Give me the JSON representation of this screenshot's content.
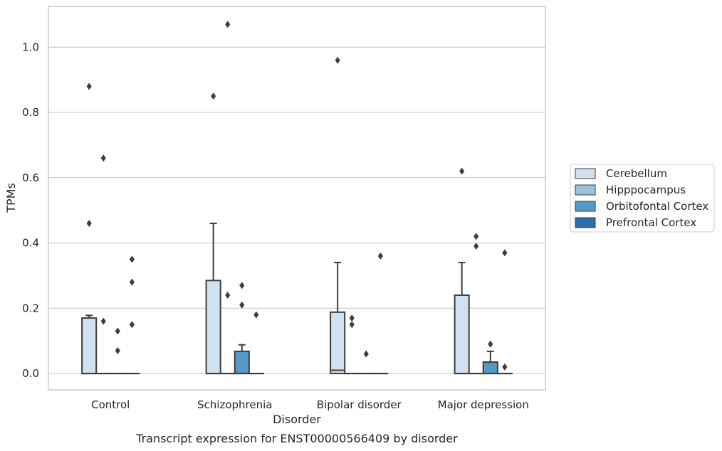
{
  "chart_data": {
    "type": "box",
    "xlabel": "Disorder",
    "ylabel": "TPMs",
    "caption": "Transcript expression for ENST00000566409 by disorder",
    "categories": [
      "Control",
      "Schizophrenia",
      "Bipolar disorder",
      "Major depression"
    ],
    "ylim": [
      -0.05,
      1.125
    ],
    "yticks": [
      "0.0",
      "0.2",
      "0.4",
      "0.6",
      "0.8",
      "1.0"
    ],
    "grid": true,
    "legend_position": "right",
    "series": [
      {
        "name": "Cerebellum",
        "color": "#d1e1ef",
        "boxes": [
          {
            "q1": 0.0,
            "median": 0.0,
            "q3": 0.17,
            "whisker_low": 0.0,
            "whisker_high": 0.178,
            "outliers": [
              0.46,
              0.88
            ]
          },
          {
            "q1": 0.0,
            "median": 0.0,
            "q3": 0.285,
            "whisker_low": 0.0,
            "whisker_high": 0.46,
            "outliers": [
              0.85
            ]
          },
          {
            "q1": 0.0,
            "median": 0.01,
            "q3": 0.188,
            "whisker_low": 0.0,
            "whisker_high": 0.34,
            "outliers": [
              0.96
            ]
          },
          {
            "q1": 0.0,
            "median": 0.0,
            "q3": 0.24,
            "whisker_low": 0.0,
            "whisker_high": 0.34,
            "outliers": [
              0.62
            ]
          }
        ]
      },
      {
        "name": "Hipppocampus",
        "color": "#9ac4de",
        "boxes": [
          {
            "q1": 0.0,
            "median": 0.0,
            "q3": 0.0,
            "whisker_low": 0.0,
            "whisker_high": 0.0,
            "outliers": [
              0.16,
              0.66
            ]
          },
          {
            "q1": 0.0,
            "median": 0.0,
            "q3": 0.0,
            "whisker_low": 0.0,
            "whisker_high": 0.0,
            "outliers": [
              0.24,
              1.07
            ]
          },
          {
            "q1": 0.0,
            "median": 0.0,
            "q3": 0.0,
            "whisker_low": 0.0,
            "whisker_high": 0.0,
            "outliers": [
              0.15,
              0.17
            ]
          },
          {
            "q1": 0.0,
            "median": 0.0,
            "q3": 0.0,
            "whisker_low": 0.0,
            "whisker_high": 0.0,
            "outliers": [
              0.39,
              0.42
            ]
          }
        ]
      },
      {
        "name": "Orbitofontal Cortex",
        "color": "#5699c7",
        "boxes": [
          {
            "q1": 0.0,
            "median": 0.0,
            "q3": 0.0,
            "whisker_low": 0.0,
            "whisker_high": 0.0,
            "outliers": [
              0.07,
              0.13
            ]
          },
          {
            "q1": 0.0,
            "median": 0.0,
            "q3": 0.068,
            "whisker_low": 0.0,
            "whisker_high": 0.088,
            "outliers": [
              0.21,
              0.27
            ]
          },
          {
            "q1": 0.0,
            "median": 0.0,
            "q3": 0.0,
            "whisker_low": 0.0,
            "whisker_high": 0.0,
            "outliers": [
              0.06
            ]
          },
          {
            "q1": 0.0,
            "median": 0.0,
            "q3": 0.035,
            "whisker_low": 0.0,
            "whisker_high": 0.068,
            "outliers": [
              0.09
            ]
          }
        ]
      },
      {
        "name": "Prefrontal Cortex",
        "color": "#2c6da8",
        "boxes": [
          {
            "q1": 0.0,
            "median": 0.0,
            "q3": 0.0,
            "whisker_low": 0.0,
            "whisker_high": 0.0,
            "outliers": [
              0.15,
              0.28,
              0.35
            ]
          },
          {
            "q1": 0.0,
            "median": 0.0,
            "q3": 0.0,
            "whisker_low": 0.0,
            "whisker_high": 0.0,
            "outliers": [
              0.18
            ]
          },
          {
            "q1": 0.0,
            "median": 0.0,
            "q3": 0.0,
            "whisker_low": 0.0,
            "whisker_high": 0.0,
            "outliers": [
              0.36
            ]
          },
          {
            "q1": 0.0,
            "median": 0.0,
            "q3": 0.0,
            "whisker_low": 0.0,
            "whisker_high": 0.0,
            "outliers": [
              0.02,
              0.37
            ]
          }
        ]
      }
    ]
  }
}
